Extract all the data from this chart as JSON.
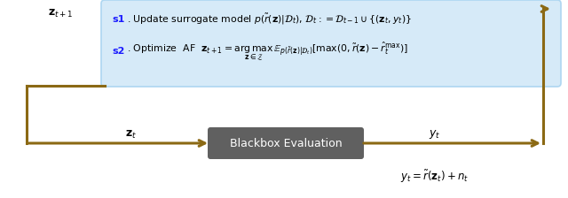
{
  "fig_width": 6.4,
  "fig_height": 2.24,
  "dpi": 100,
  "bg_color": "#ffffff",
  "arrow_color": "#8B6914",
  "arrow_lw": 2.2,
  "box_bg_color": "#d6eaf8",
  "box_edge_color": "#aed6f1",
  "blackbox_bg": "#606060",
  "blackbox_text_color": "#ffffff",
  "blackbox_label": "Blackbox Evaluation",
  "label_zt1": "$\\mathbf{z}_{t+1}$",
  "label_zt": "$\\mathbf{z}_{t}$",
  "label_yt": "$y_t$",
  "label_eq": "$y_t = \\tilde{r}(\\mathbf{z}_t) + n_t$",
  "s1_color": "#1a1aff",
  "s1_label": "s1",
  "s1_text": ". Update surrogate model $p(\\tilde{r}(\\mathbf{z})|\\mathcal{D}_t),\\, \\mathcal{D}_t := \\mathcal{D}_{t-1} \\cup \\{(\\mathbf{z}_t, y_t)\\}$",
  "s2_color": "#1a1aff",
  "s2_label": "s2",
  "s2_text": ". Optimize  AF  $\\mathbf{z}_{t+1} = \\underset{\\mathbf{z} \\in \\mathcal{Z}}{\\arg\\max}\\, \\mathbb{E}_{p(\\tilde{r}(\\mathbf{z})|\\mathcal{D}_t)}[\\max(0, \\tilde{r}(\\mathbf{z}) - \\hat{r}_t^{\\max})]$"
}
